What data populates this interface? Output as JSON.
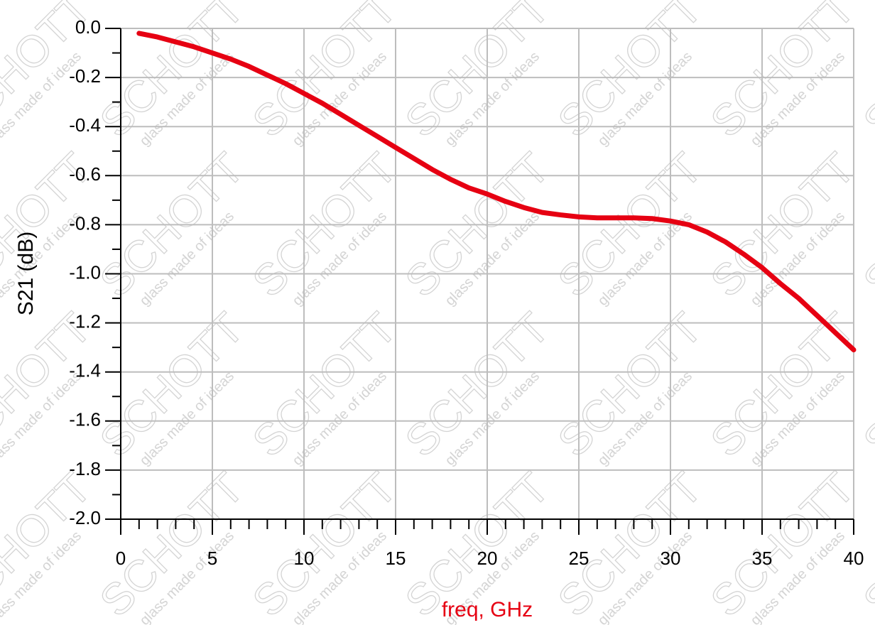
{
  "chart_data": {
    "type": "line",
    "x_label": "freq, GHz",
    "y_label": "S21 (dB)",
    "watermark": {
      "logo": "SCHOTT",
      "tagline": "glass made of ideas"
    },
    "x": [
      1,
      2,
      3,
      4,
      5,
      6,
      7,
      8,
      9,
      10,
      11,
      12,
      13,
      14,
      15,
      16,
      17,
      18,
      19,
      20,
      21,
      22,
      23,
      24,
      25,
      26,
      27,
      28,
      29,
      30,
      31,
      32,
      33,
      34,
      35,
      36,
      37,
      38,
      39,
      40
    ],
    "series": [
      {
        "name": "S21",
        "color": "#e60012",
        "values": [
          -0.02,
          -0.035,
          -0.055,
          -0.075,
          -0.1,
          -0.125,
          -0.155,
          -0.19,
          -0.225,
          -0.265,
          -0.305,
          -0.35,
          -0.395,
          -0.44,
          -0.485,
          -0.53,
          -0.575,
          -0.615,
          -0.65,
          -0.675,
          -0.705,
          -0.73,
          -0.75,
          -0.76,
          -0.768,
          -0.772,
          -0.772,
          -0.772,
          -0.775,
          -0.785,
          -0.8,
          -0.83,
          -0.87,
          -0.92,
          -0.975,
          -1.04,
          -1.1,
          -1.17,
          -1.24,
          -1.31
        ]
      }
    ],
    "xlim": [
      0,
      40
    ],
    "xticks": [
      0,
      5,
      10,
      15,
      20,
      25,
      30,
      35,
      40
    ],
    "ylim": [
      -2,
      0
    ],
    "yticks": [
      {
        "value": 0,
        "label": "0.0"
      },
      -0.2,
      -0.4,
      -0.6,
      -0.8,
      {
        "value": -1,
        "label": "-1.0"
      },
      -1.2,
      -1.4,
      -1.6,
      -1.8,
      {
        "value": -2,
        "label": "-2.0"
      }
    ],
    "grid": true
  }
}
